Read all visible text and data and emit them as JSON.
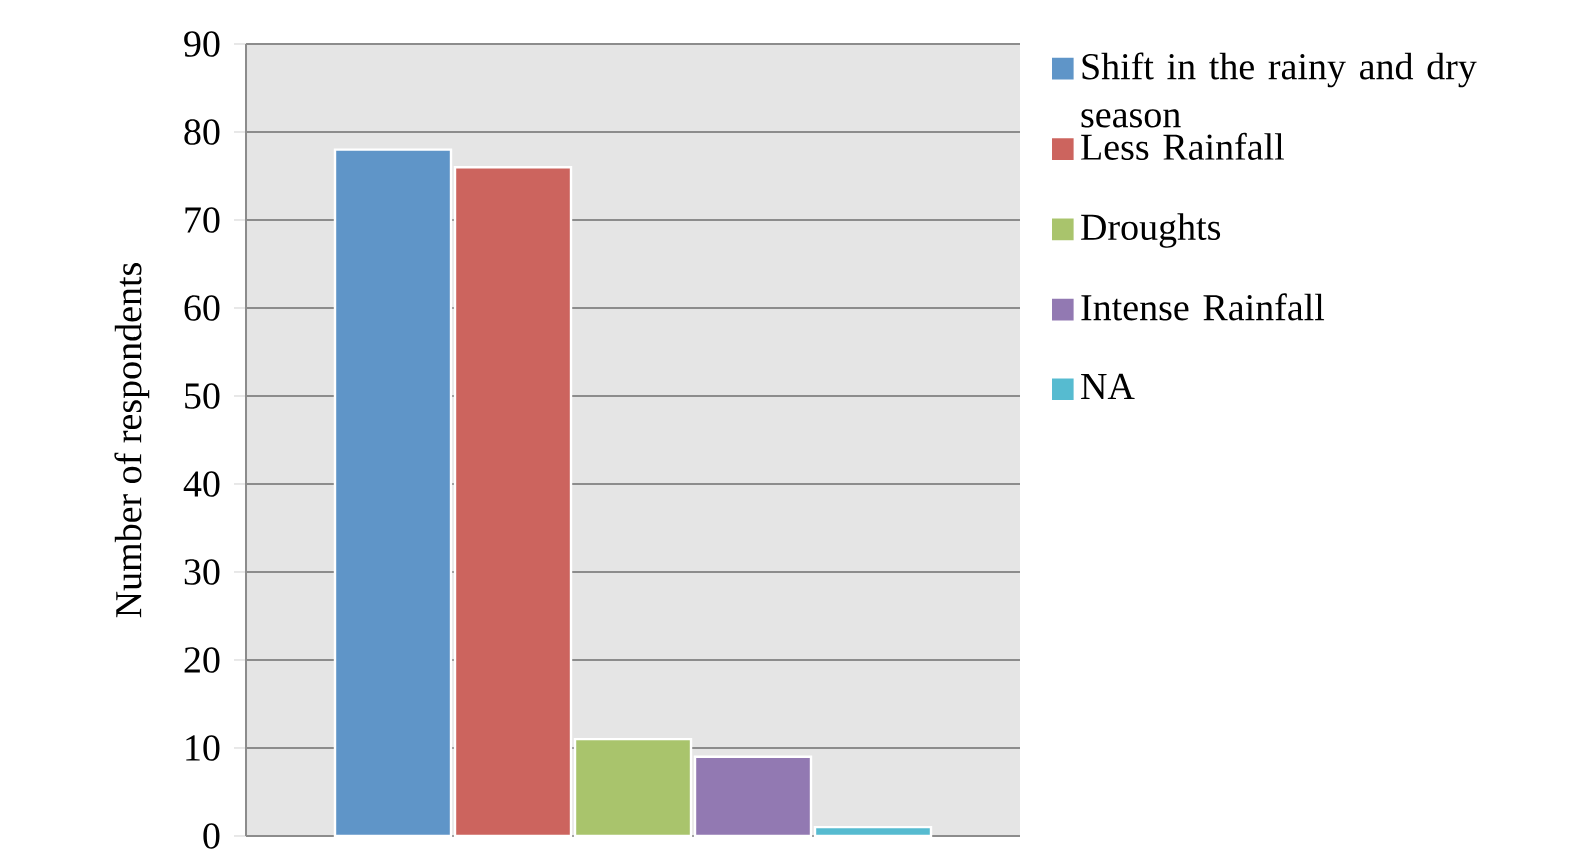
{
  "chart_data": {
    "type": "bar",
    "ylabel": "Number of respondents",
    "categories": [
      null
    ],
    "series": [
      {
        "name": "Shift in the rainy and dry season",
        "color": "#5f95c8",
        "values": [
          78
        ]
      },
      {
        "name": "Less Rainfall",
        "color": "#cc645e",
        "values": [
          76
        ]
      },
      {
        "name": "Droughts",
        "color": "#a9c46c",
        "values": [
          11
        ]
      },
      {
        "name": "Intense Rainfall",
        "color": "#9279b2",
        "values": [
          9
        ]
      },
      {
        "name": "NA",
        "color": "#56bbd0",
        "values": [
          1
        ]
      }
    ],
    "ylim": [
      0,
      90
    ],
    "yticks": [
      0,
      10,
      20,
      30,
      40,
      50,
      60,
      70,
      80,
      90
    ],
    "grid": "y",
    "legend": "right"
  }
}
